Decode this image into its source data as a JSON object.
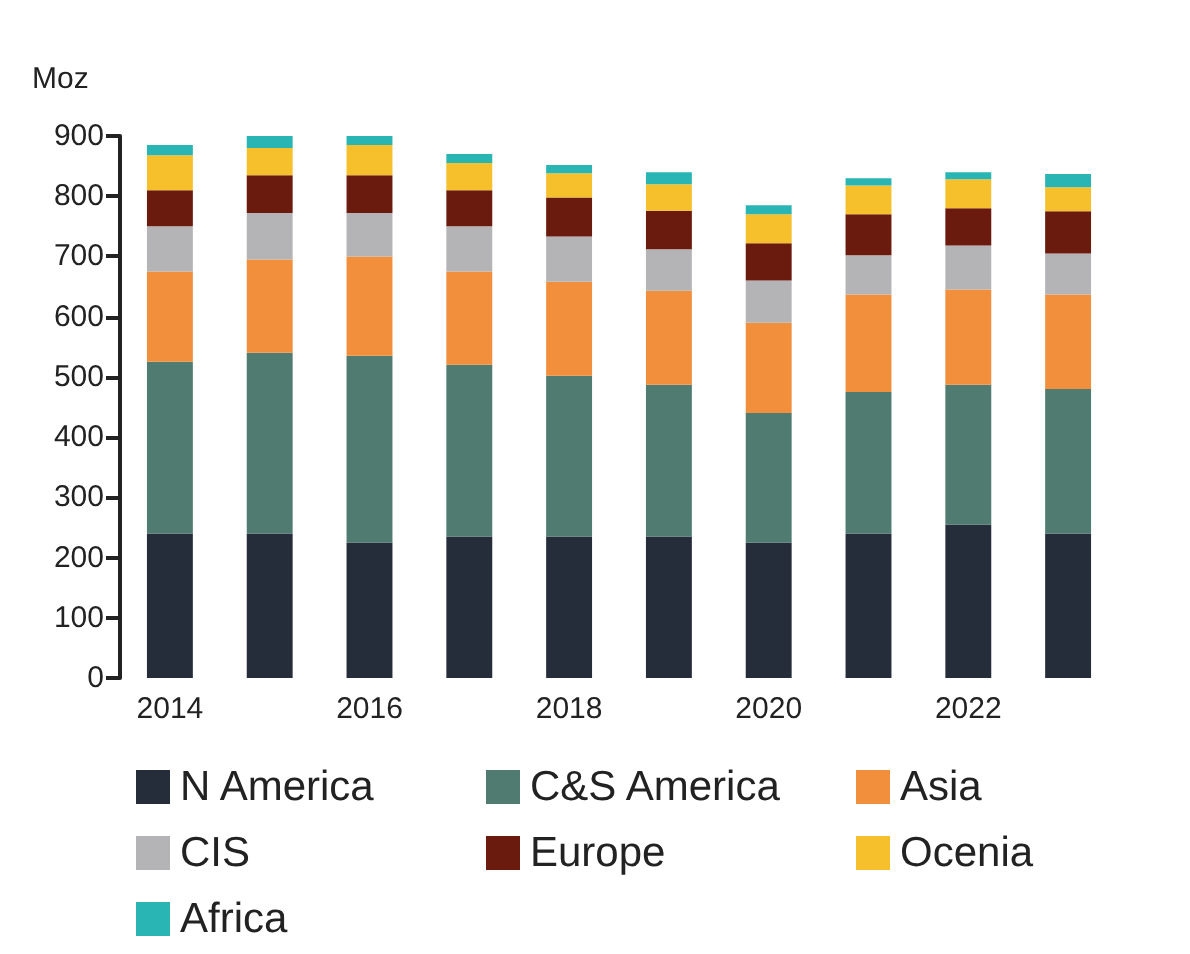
{
  "chart_data": {
    "type": "bar",
    "stacked": true,
    "ylabel": "Moz",
    "categories": [
      "2014",
      null,
      "2016",
      null,
      "2018",
      null,
      "2020",
      null,
      "2022",
      null
    ],
    "series": [
      {
        "name": "N America",
        "color": "#252d3b",
        "values": [
          240,
          240,
          225,
          235,
          235,
          235,
          225,
          240,
          255,
          240
        ]
      },
      {
        "name": "C&S America",
        "color": "#4f7b70",
        "values": [
          285,
          300,
          310,
          285,
          267,
          252,
          215,
          235,
          232,
          240
        ]
      },
      {
        "name": "Asia",
        "color": "#f28f3d",
        "values": [
          150,
          155,
          165,
          155,
          156,
          156,
          150,
          162,
          158,
          157
        ]
      },
      {
        "name": "CIS",
        "color": "#b4b4b6",
        "values": [
          75,
          77,
          72,
          75,
          75,
          69,
          70,
          65,
          73,
          68
        ]
      },
      {
        "name": "Europe",
        "color": "#6b1a0e",
        "values": [
          60,
          63,
          63,
          60,
          65,
          64,
          62,
          68,
          62,
          70
        ]
      },
      {
        "name": "Ocenia",
        "color": "#f6c02c",
        "values": [
          58,
          45,
          50,
          45,
          40,
          44,
          48,
          48,
          48,
          40
        ]
      },
      {
        "name": "Africa",
        "color": "#2ab5b5",
        "values": [
          17,
          20,
          15,
          15,
          14,
          20,
          15,
          12,
          12,
          22
        ]
      }
    ],
    "ylim": [
      0,
      900
    ],
    "yticks": [
      0,
      100,
      200,
      300,
      400,
      500,
      600,
      700,
      800,
      900
    ],
    "grid": false,
    "legend": "bottom"
  }
}
